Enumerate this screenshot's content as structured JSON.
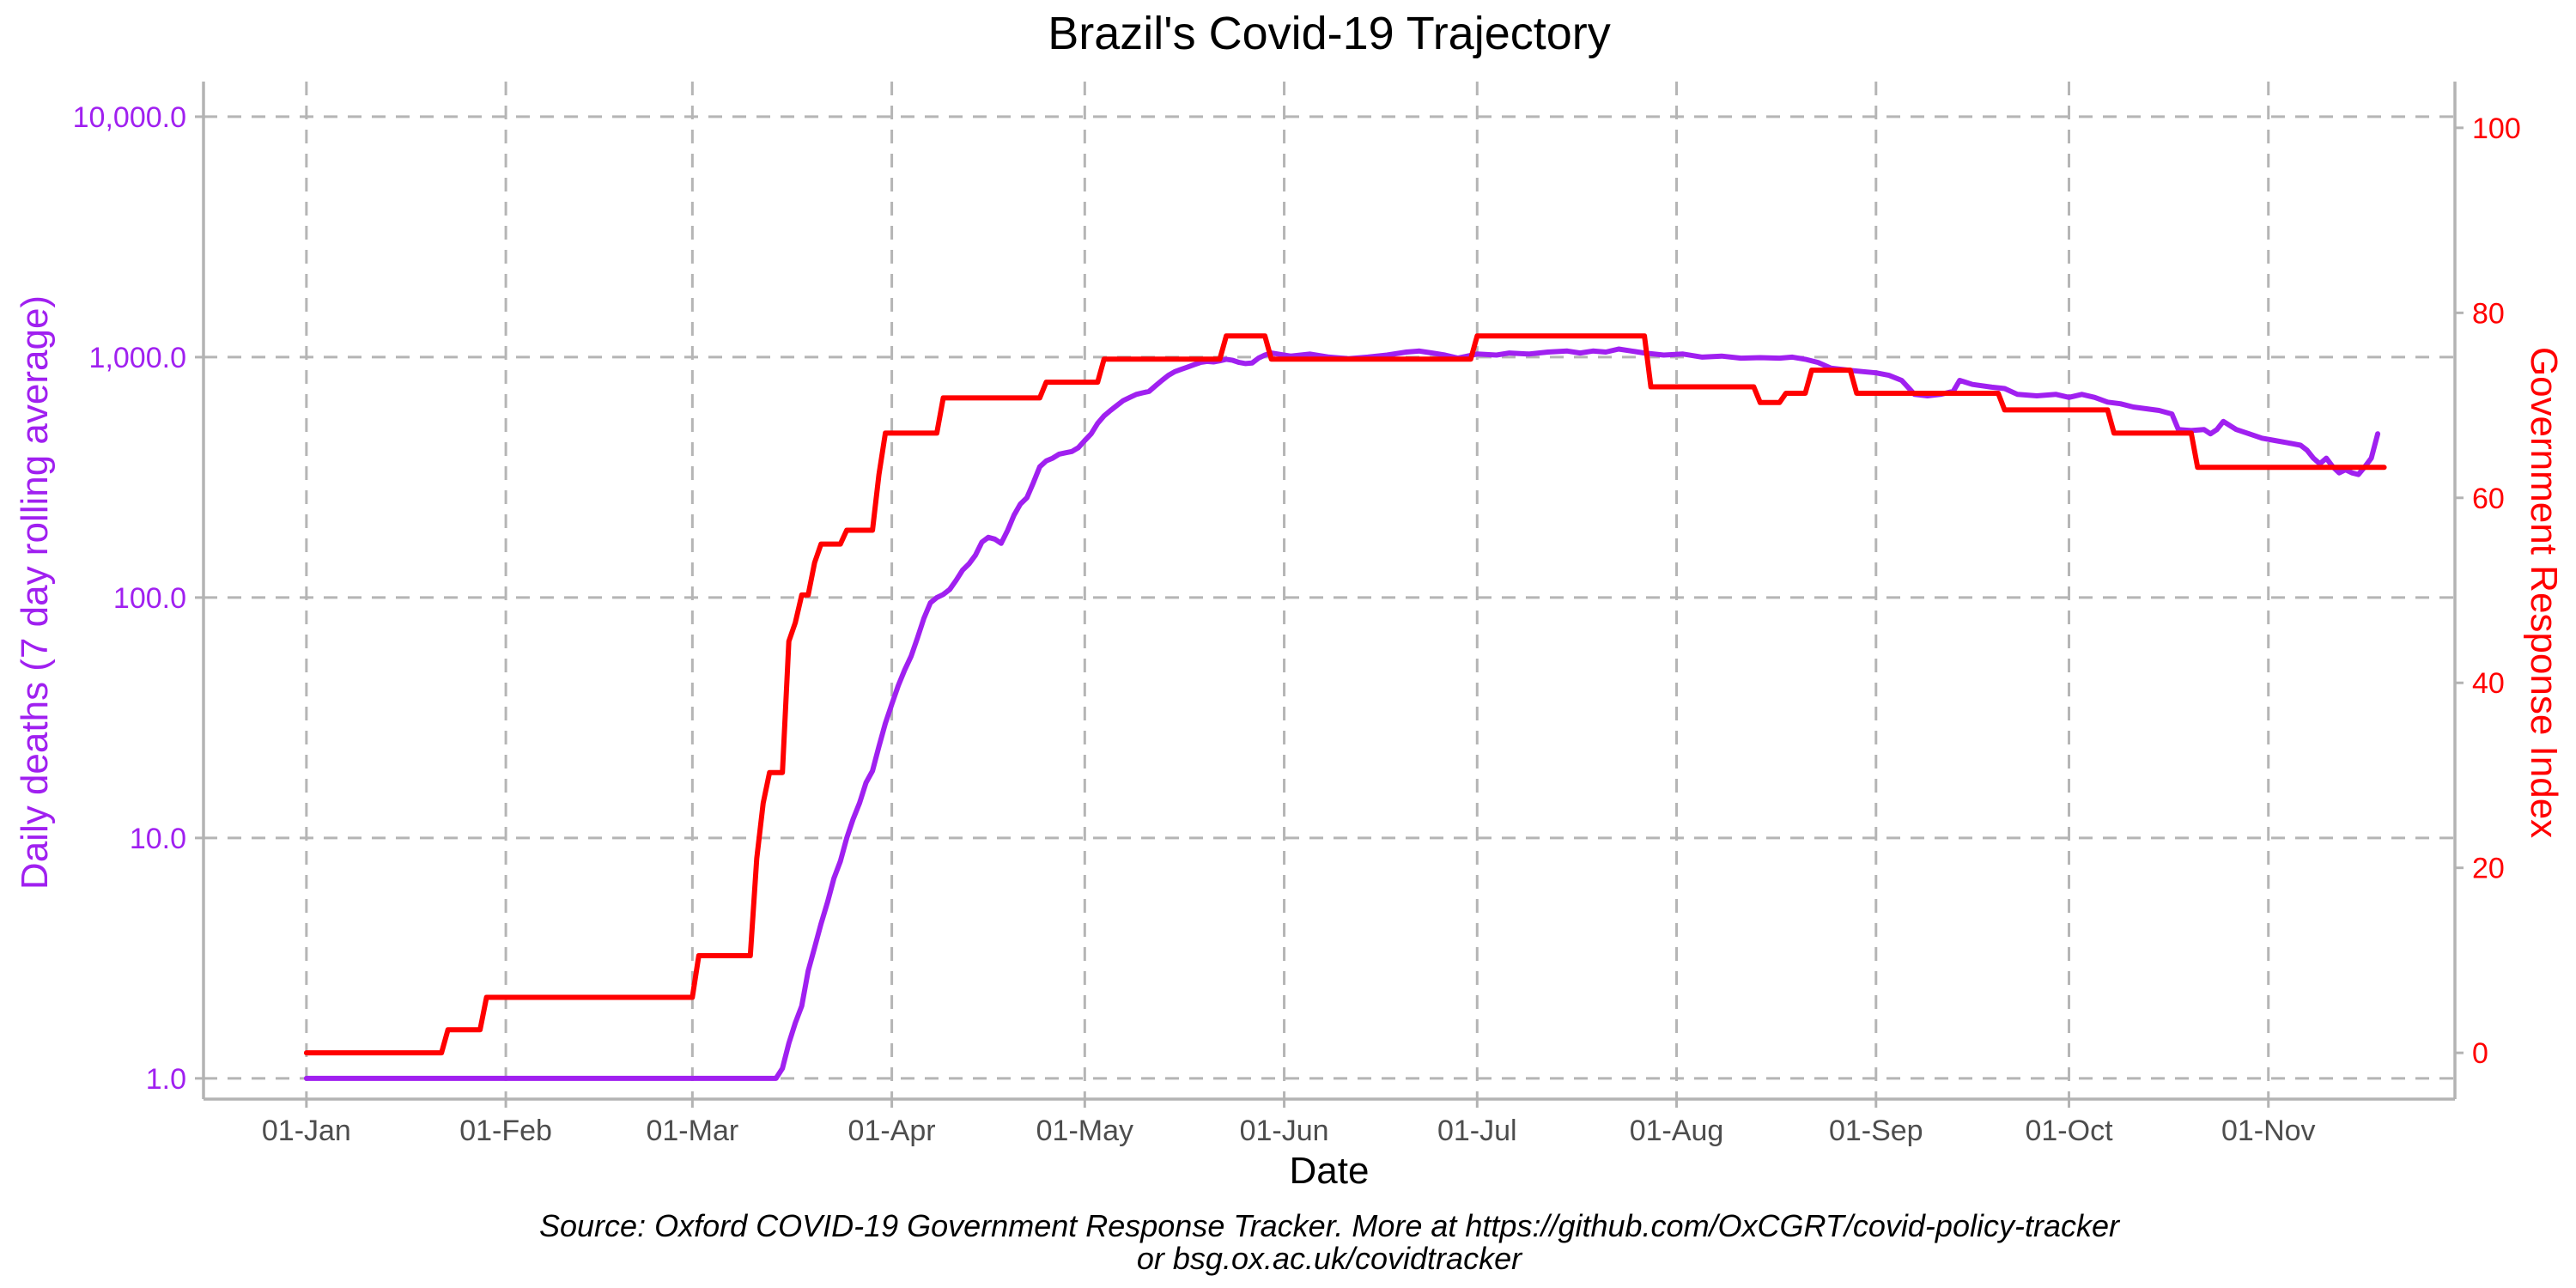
{
  "chart_data": {
    "type": "line",
    "title": "Brazil's Covid-19 Trajectory",
    "xlabel": "Date",
    "ylabel_left": "Daily deaths (7 day rolling average)",
    "ylabel_right": "Government Response Index",
    "caption_line1": "Source: Oxford COVID-19 Government Response Tracker. More at https://github.com/OxCGRT/covid-policy-tracker",
    "caption_line2": "or bsg.ox.ac.uk/covidtracker",
    "x_ticks": [
      {
        "day": 0,
        "label": "01-Jan"
      },
      {
        "day": 31,
        "label": "01-Feb"
      },
      {
        "day": 60,
        "label": "01-Mar"
      },
      {
        "day": 91,
        "label": "01-Apr"
      },
      {
        "day": 121,
        "label": "01-May"
      },
      {
        "day": 152,
        "label": "01-Jun"
      },
      {
        "day": 182,
        "label": "01-Jul"
      },
      {
        "day": 213,
        "label": "01-Aug"
      },
      {
        "day": 244,
        "label": "01-Sep"
      },
      {
        "day": 274,
        "label": "01-Oct"
      },
      {
        "day": 305,
        "label": "01-Nov"
      }
    ],
    "xlim_days": [
      -16,
      334
    ],
    "y_left": {
      "scale": "log10",
      "ylim": [
        0.82,
        14000
      ],
      "ticks": [
        {
          "value": 1,
          "label": "1.0"
        },
        {
          "value": 10,
          "label": "10.0"
        },
        {
          "value": 100,
          "label": "100.0"
        },
        {
          "value": 1000,
          "label": "1,000.0"
        },
        {
          "value": 10000,
          "label": "10,000.0"
        }
      ]
    },
    "y_right": {
      "scale": "linear",
      "ylim": [
        -5,
        105
      ],
      "ticks": [
        {
          "value": 0,
          "label": "0"
        },
        {
          "value": 20,
          "label": "20"
        },
        {
          "value": 40,
          "label": "40"
        },
        {
          "value": 60,
          "label": "60"
        },
        {
          "value": 80,
          "label": "80"
        },
        {
          "value": 100,
          "label": "100"
        }
      ]
    },
    "grid": true,
    "series": [
      {
        "axis": "left",
        "color": "#a020f0",
        "points": [
          [
            "2020-01-01",
            1.0
          ],
          [
            "2020-03-14",
            1.0
          ],
          [
            "2020-03-15",
            1.1
          ],
          [
            "2020-03-16",
            1.4
          ],
          [
            "2020-03-17",
            1.7
          ],
          [
            "2020-03-18",
            2.0
          ],
          [
            "2020-03-19",
            2.8
          ],
          [
            "2020-03-20",
            3.5
          ],
          [
            "2020-03-21",
            4.4
          ],
          [
            "2020-03-22",
            5.4
          ],
          [
            "2020-03-23",
            6.8
          ],
          [
            "2020-03-24",
            8.0
          ],
          [
            "2020-03-25",
            10.0
          ],
          [
            "2020-03-26",
            12.0
          ],
          [
            "2020-03-27",
            14.0
          ],
          [
            "2020-03-28",
            17.0
          ],
          [
            "2020-03-29",
            19.0
          ],
          [
            "2020-03-30",
            24.0
          ],
          [
            "2020-03-31",
            30.0
          ],
          [
            "2020-04-01",
            36.0
          ],
          [
            "2020-04-02",
            43.0
          ],
          [
            "2020-04-03",
            50.0
          ],
          [
            "2020-04-04",
            57.0
          ],
          [
            "2020-04-05",
            68.0
          ],
          [
            "2020-04-06",
            82.0
          ],
          [
            "2020-04-07",
            95.0
          ],
          [
            "2020-04-08",
            100.0
          ],
          [
            "2020-04-09",
            103.0
          ],
          [
            "2020-04-10",
            108.0
          ],
          [
            "2020-04-11",
            118.0
          ],
          [
            "2020-04-12",
            130.0
          ],
          [
            "2020-04-13",
            138.0
          ],
          [
            "2020-04-14",
            150.0
          ],
          [
            "2020-04-15",
            170.0
          ],
          [
            "2020-04-16",
            178.0
          ],
          [
            "2020-04-17",
            175.0
          ],
          [
            "2020-04-18",
            168.0
          ],
          [
            "2020-04-19",
            190.0
          ],
          [
            "2020-04-20",
            220.0
          ],
          [
            "2020-04-21",
            245.0
          ],
          [
            "2020-04-22",
            260.0
          ],
          [
            "2020-04-23",
            300.0
          ],
          [
            "2020-04-24",
            350.0
          ],
          [
            "2020-04-25",
            370.0
          ],
          [
            "2020-04-26",
            380.0
          ],
          [
            "2020-04-27",
            395.0
          ],
          [
            "2020-04-28",
            400.0
          ],
          [
            "2020-04-29",
            405.0
          ],
          [
            "2020-04-30",
            420.0
          ],
          [
            "2020-05-01",
            450.0
          ],
          [
            "2020-05-02",
            480.0
          ],
          [
            "2020-05-03",
            530.0
          ],
          [
            "2020-05-04",
            570.0
          ],
          [
            "2020-05-05",
            600.0
          ],
          [
            "2020-05-06",
            630.0
          ],
          [
            "2020-05-07",
            660.0
          ],
          [
            "2020-05-08",
            680.0
          ],
          [
            "2020-05-09",
            700.0
          ],
          [
            "2020-05-10",
            710.0
          ],
          [
            "2020-05-11",
            720.0
          ],
          [
            "2020-05-12",
            760.0
          ],
          [
            "2020-05-13",
            800.0
          ],
          [
            "2020-05-14",
            840.0
          ],
          [
            "2020-05-15",
            870.0
          ],
          [
            "2020-05-16",
            890.0
          ],
          [
            "2020-05-17",
            910.0
          ],
          [
            "2020-05-18",
            930.0
          ],
          [
            "2020-05-19",
            950.0
          ],
          [
            "2020-05-20",
            960.0
          ],
          [
            "2020-05-21",
            955.0
          ],
          [
            "2020-05-22",
            965.0
          ],
          [
            "2020-05-23",
            980.0
          ],
          [
            "2020-05-24",
            970.0
          ],
          [
            "2020-05-25",
            950.0
          ],
          [
            "2020-05-26",
            940.0
          ],
          [
            "2020-05-27",
            945.0
          ],
          [
            "2020-05-28",
            990.0
          ],
          [
            "2020-05-29",
            1020.0
          ],
          [
            "2020-05-30",
            1040.0
          ],
          [
            "2020-05-31",
            1030.0
          ],
          [
            "2020-06-02",
            1010.0
          ],
          [
            "2020-06-05",
            1030.0
          ],
          [
            "2020-06-08",
            1000.0
          ],
          [
            "2020-06-11",
            985.0
          ],
          [
            "2020-06-14",
            1000.0
          ],
          [
            "2020-06-17",
            1020.0
          ],
          [
            "2020-06-20",
            1050.0
          ],
          [
            "2020-06-22",
            1060.0
          ],
          [
            "2020-06-24",
            1040.0
          ],
          [
            "2020-06-26",
            1020.0
          ],
          [
            "2020-06-28",
            990.0
          ],
          [
            "2020-07-01",
            1030.0
          ],
          [
            "2020-07-04",
            1020.0
          ],
          [
            "2020-07-06",
            1040.0
          ],
          [
            "2020-07-09",
            1030.0
          ],
          [
            "2020-07-12",
            1050.0
          ],
          [
            "2020-07-15",
            1060.0
          ],
          [
            "2020-07-17",
            1040.0
          ],
          [
            "2020-07-19",
            1060.0
          ],
          [
            "2020-07-21",
            1050.0
          ],
          [
            "2020-07-23",
            1080.0
          ],
          [
            "2020-07-25",
            1060.0
          ],
          [
            "2020-07-27",
            1040.0
          ],
          [
            "2020-07-30",
            1020.0
          ],
          [
            "2020-08-02",
            1030.0
          ],
          [
            "2020-08-05",
            1000.0
          ],
          [
            "2020-08-08",
            1010.0
          ],
          [
            "2020-08-11",
            990.0
          ],
          [
            "2020-08-14",
            995.0
          ],
          [
            "2020-08-17",
            990.0
          ],
          [
            "2020-08-19",
            1000.0
          ],
          [
            "2020-08-21",
            980.0
          ],
          [
            "2020-08-23",
            950.0
          ],
          [
            "2020-08-25",
            900.0
          ],
          [
            "2020-08-28",
            880.0
          ],
          [
            "2020-08-30",
            870.0
          ],
          [
            "2020-09-01",
            860.0
          ],
          [
            "2020-09-03",
            840.0
          ],
          [
            "2020-09-05",
            800.0
          ],
          [
            "2020-09-07",
            700.0
          ],
          [
            "2020-09-09",
            690.0
          ],
          [
            "2020-09-11",
            700.0
          ],
          [
            "2020-09-13",
            720.0
          ],
          [
            "2020-09-14",
            800.0
          ],
          [
            "2020-09-16",
            770.0
          ],
          [
            "2020-09-19",
            750.0
          ],
          [
            "2020-09-21",
            740.0
          ],
          [
            "2020-09-23",
            700.0
          ],
          [
            "2020-09-26",
            690.0
          ],
          [
            "2020-09-29",
            700.0
          ],
          [
            "2020-10-01",
            680.0
          ],
          [
            "2020-10-03",
            700.0
          ],
          [
            "2020-10-05",
            680.0
          ],
          [
            "2020-10-07",
            650.0
          ],
          [
            "2020-10-09",
            640.0
          ],
          [
            "2020-10-11",
            620.0
          ],
          [
            "2020-10-13",
            610.0
          ],
          [
            "2020-10-15",
            600.0
          ],
          [
            "2020-10-17",
            580.0
          ],
          [
            "2020-10-18",
            500.0
          ],
          [
            "2020-10-20",
            495.0
          ],
          [
            "2020-10-22",
            500.0
          ],
          [
            "2020-10-23",
            480.0
          ],
          [
            "2020-10-24",
            500.0
          ],
          [
            "2020-10-25",
            540.0
          ],
          [
            "2020-10-27",
            500.0
          ],
          [
            "2020-10-29",
            480.0
          ],
          [
            "2020-10-31",
            460.0
          ],
          [
            "2020-11-02",
            450.0
          ],
          [
            "2020-11-04",
            440.0
          ],
          [
            "2020-11-06",
            430.0
          ],
          [
            "2020-11-07",
            410.0
          ],
          [
            "2020-11-08",
            380.0
          ],
          [
            "2020-11-09",
            360.0
          ],
          [
            "2020-11-10",
            380.0
          ],
          [
            "2020-11-11",
            350.0
          ],
          [
            "2020-11-12",
            330.0
          ],
          [
            "2020-11-13",
            340.0
          ],
          [
            "2020-11-14",
            330.0
          ],
          [
            "2020-11-15",
            325.0
          ],
          [
            "2020-11-16",
            350.0
          ],
          [
            "2020-11-17",
            380.0
          ],
          [
            "2020-11-18",
            480.0
          ]
        ]
      },
      {
        "axis": "right",
        "color": "#ff0000",
        "points": [
          [
            "2020-01-01",
            0.0
          ],
          [
            "2020-01-22",
            0.0
          ],
          [
            "2020-01-23",
            2.5
          ],
          [
            "2020-01-28",
            2.5
          ],
          [
            "2020-01-29",
            6.0
          ],
          [
            "2020-02-29",
            6.0
          ],
          [
            "2020-03-01",
            6.0
          ],
          [
            "2020-03-02",
            10.5
          ],
          [
            "2020-03-10",
            10.5
          ],
          [
            "2020-03-11",
            21.0
          ],
          [
            "2020-03-12",
            27.0
          ],
          [
            "2020-03-13",
            30.3
          ],
          [
            "2020-03-15",
            30.3
          ],
          [
            "2020-03-16",
            44.5
          ],
          [
            "2020-03-17",
            46.5
          ],
          [
            "2020-03-18",
            49.5
          ],
          [
            "2020-03-19",
            49.5
          ],
          [
            "2020-03-20",
            53.0
          ],
          [
            "2020-03-21",
            55.0
          ],
          [
            "2020-03-24",
            55.0
          ],
          [
            "2020-03-25",
            56.5
          ],
          [
            "2020-03-29",
            56.5
          ],
          [
            "2020-03-30",
            62.5
          ],
          [
            "2020-03-31",
            67.0
          ],
          [
            "2020-04-08",
            67.0
          ],
          [
            "2020-04-09",
            70.8
          ],
          [
            "2020-04-24",
            70.8
          ],
          [
            "2020-04-25",
            72.5
          ],
          [
            "2020-05-03",
            72.5
          ],
          [
            "2020-05-04",
            75.0
          ],
          [
            "2020-05-22",
            75.0
          ],
          [
            "2020-05-23",
            77.5
          ],
          [
            "2020-05-29",
            77.5
          ],
          [
            "2020-05-30",
            75.0
          ],
          [
            "2020-06-30",
            75.0
          ],
          [
            "2020-07-01",
            77.5
          ],
          [
            "2020-07-27",
            77.5
          ],
          [
            "2020-07-28",
            72.0
          ],
          [
            "2020-08-13",
            72.0
          ],
          [
            "2020-08-14",
            70.3
          ],
          [
            "2020-08-17",
            70.3
          ],
          [
            "2020-08-18",
            71.3
          ],
          [
            "2020-08-21",
            71.3
          ],
          [
            "2020-08-22",
            73.8
          ],
          [
            "2020-08-28",
            73.8
          ],
          [
            "2020-08-29",
            71.3
          ],
          [
            "2020-09-20",
            71.3
          ],
          [
            "2020-09-21",
            69.5
          ],
          [
            "2020-10-07",
            69.5
          ],
          [
            "2020-10-08",
            67.0
          ],
          [
            "2020-10-20",
            67.0
          ],
          [
            "2020-10-21",
            63.3
          ],
          [
            "2020-11-19",
            63.3
          ]
        ]
      }
    ]
  }
}
